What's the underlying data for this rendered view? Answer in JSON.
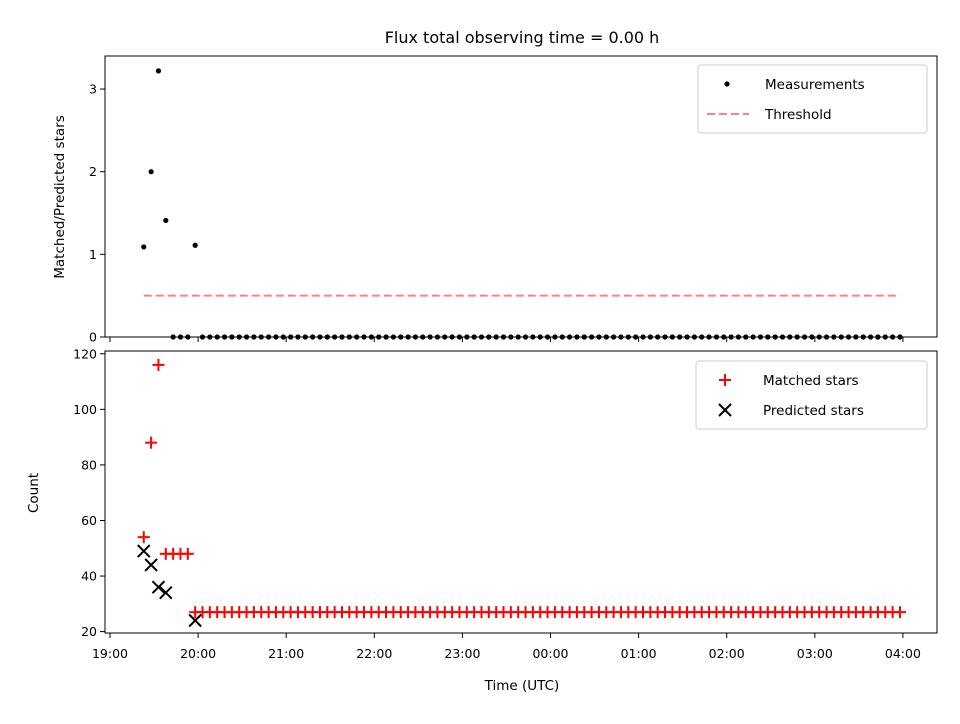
{
  "figure": {
    "title": "Flux total observing time = 0.00 h",
    "xlabel": "Time (UTC)"
  },
  "chart_data": [
    {
      "type": "scatter",
      "panel": "top",
      "ylabel": "Matched/Predicted stars",
      "xlim": [
        "19:00",
        "04:00"
      ],
      "ylim": [
        0,
        3.4
      ],
      "yticks": [
        0,
        1,
        2,
        3
      ],
      "series": [
        {
          "name": "Measurements",
          "marker": "dot",
          "color": "#000000",
          "points": [
            {
              "x": "19:23",
              "y": 1.09
            },
            {
              "x": "19:28",
              "y": 2.0
            },
            {
              "x": "19:33",
              "y": 3.22
            },
            {
              "x": "19:38",
              "y": 1.41
            },
            {
              "x": "19:43",
              "y": 0
            },
            {
              "x": "19:48",
              "y": 0
            },
            {
              "x": "19:53",
              "y": 0
            },
            {
              "x": "19:58",
              "y": 1.11
            },
            {
              "x": "20:03",
              "y": 0
            },
            {
              "x": "20:08",
              "y": 0
            },
            {
              "x": "20:13",
              "y": 0
            },
            {
              "x": "20:18",
              "y": 0
            },
            {
              "x": "20:23",
              "y": 0
            },
            {
              "x": "20:28",
              "y": 0
            },
            {
              "x": "20:33",
              "y": 0
            },
            {
              "x": "20:38",
              "y": 0
            },
            {
              "x": "20:43",
              "y": 0
            },
            {
              "x": "20:48",
              "y": 0
            },
            {
              "x": "20:53",
              "y": 0
            },
            {
              "x": "20:58",
              "y": 0
            },
            {
              "x": "21:03",
              "y": 0
            },
            {
              "x": "21:08",
              "y": 0
            },
            {
              "x": "21:13",
              "y": 0
            },
            {
              "x": "21:18",
              "y": 0
            },
            {
              "x": "21:23",
              "y": 0
            },
            {
              "x": "21:28",
              "y": 0
            },
            {
              "x": "21:33",
              "y": 0
            },
            {
              "x": "21:38",
              "y": 0
            },
            {
              "x": "21:43",
              "y": 0
            },
            {
              "x": "21:48",
              "y": 0
            },
            {
              "x": "21:53",
              "y": 0
            },
            {
              "x": "21:58",
              "y": 0
            },
            {
              "x": "22:03",
              "y": 0
            },
            {
              "x": "22:08",
              "y": 0
            },
            {
              "x": "22:13",
              "y": 0
            },
            {
              "x": "22:18",
              "y": 0
            },
            {
              "x": "22:23",
              "y": 0
            },
            {
              "x": "22:28",
              "y": 0
            },
            {
              "x": "22:33",
              "y": 0
            },
            {
              "x": "22:38",
              "y": 0
            },
            {
              "x": "22:43",
              "y": 0
            },
            {
              "x": "22:48",
              "y": 0
            },
            {
              "x": "22:53",
              "y": 0
            },
            {
              "x": "22:58",
              "y": 0
            },
            {
              "x": "23:03",
              "y": 0
            },
            {
              "x": "23:08",
              "y": 0
            },
            {
              "x": "23:13",
              "y": 0
            },
            {
              "x": "23:18",
              "y": 0
            },
            {
              "x": "23:23",
              "y": 0
            },
            {
              "x": "23:28",
              "y": 0
            },
            {
              "x": "23:33",
              "y": 0
            },
            {
              "x": "23:38",
              "y": 0
            },
            {
              "x": "23:43",
              "y": 0
            },
            {
              "x": "23:48",
              "y": 0
            },
            {
              "x": "23:53",
              "y": 0
            },
            {
              "x": "23:58",
              "y": 0
            },
            {
              "x": "00:03",
              "y": 0
            },
            {
              "x": "00:08",
              "y": 0
            },
            {
              "x": "00:13",
              "y": 0
            },
            {
              "x": "00:18",
              "y": 0
            },
            {
              "x": "00:23",
              "y": 0
            },
            {
              "x": "00:28",
              "y": 0
            },
            {
              "x": "00:33",
              "y": 0
            },
            {
              "x": "00:38",
              "y": 0
            },
            {
              "x": "00:43",
              "y": 0
            },
            {
              "x": "00:48",
              "y": 0
            },
            {
              "x": "00:53",
              "y": 0
            },
            {
              "x": "00:58",
              "y": 0
            },
            {
              "x": "01:03",
              "y": 0
            },
            {
              "x": "01:08",
              "y": 0
            },
            {
              "x": "01:13",
              "y": 0
            },
            {
              "x": "01:18",
              "y": 0
            },
            {
              "x": "01:23",
              "y": 0
            },
            {
              "x": "01:28",
              "y": 0
            },
            {
              "x": "01:33",
              "y": 0
            },
            {
              "x": "01:38",
              "y": 0
            },
            {
              "x": "01:43",
              "y": 0
            },
            {
              "x": "01:48",
              "y": 0
            },
            {
              "x": "01:53",
              "y": 0
            },
            {
              "x": "01:58",
              "y": 0
            },
            {
              "x": "02:03",
              "y": 0
            },
            {
              "x": "02:08",
              "y": 0
            },
            {
              "x": "02:13",
              "y": 0
            },
            {
              "x": "02:18",
              "y": 0
            },
            {
              "x": "02:23",
              "y": 0
            },
            {
              "x": "02:28",
              "y": 0
            },
            {
              "x": "02:33",
              "y": 0
            },
            {
              "x": "02:38",
              "y": 0
            },
            {
              "x": "02:43",
              "y": 0
            },
            {
              "x": "02:48",
              "y": 0
            },
            {
              "x": "02:53",
              "y": 0
            },
            {
              "x": "02:58",
              "y": 0
            },
            {
              "x": "03:03",
              "y": 0
            },
            {
              "x": "03:08",
              "y": 0
            },
            {
              "x": "03:13",
              "y": 0
            },
            {
              "x": "03:18",
              "y": 0
            },
            {
              "x": "03:23",
              "y": 0
            },
            {
              "x": "03:28",
              "y": 0
            },
            {
              "x": "03:33",
              "y": 0
            },
            {
              "x": "03:38",
              "y": 0
            },
            {
              "x": "03:43",
              "y": 0
            },
            {
              "x": "03:48",
              "y": 0
            },
            {
              "x": "03:53",
              "y": 0
            },
            {
              "x": "03:58",
              "y": 0
            }
          ]
        },
        {
          "name": "Threshold",
          "style": "dashed",
          "color": "#ff8080",
          "points": [
            {
              "x": "19:23",
              "y": 0.5
            },
            {
              "x": "03:58",
              "y": 0.5
            }
          ]
        }
      ],
      "legend_position": "top-right"
    },
    {
      "type": "scatter",
      "panel": "bottom",
      "ylabel": "Count",
      "xlim": [
        "19:00",
        "04:00"
      ],
      "ylim": [
        19.5,
        121
      ],
      "yticks": [
        20,
        40,
        60,
        80,
        100,
        120
      ],
      "xticks": [
        "19:00",
        "20:00",
        "21:00",
        "22:00",
        "23:00",
        "00:00",
        "01:00",
        "02:00",
        "03:00",
        "04:00"
      ],
      "series": [
        {
          "name": "Matched stars",
          "marker": "plus",
          "color": "#ff0000",
          "points": [
            {
              "x": "19:23",
              "y": 54
            },
            {
              "x": "19:28",
              "y": 88
            },
            {
              "x": "19:33",
              "y": 116
            },
            {
              "x": "19:38",
              "y": 48
            },
            {
              "x": "19:43",
              "y": 48
            },
            {
              "x": "19:48",
              "y": 48
            },
            {
              "x": "19:53",
              "y": 48
            },
            {
              "x": "19:58",
              "y": 27
            },
            {
              "x": "20:03",
              "y": 27
            },
            {
              "x": "20:08",
              "y": 27
            },
            {
              "x": "20:13",
              "y": 27
            },
            {
              "x": "20:18",
              "y": 27
            },
            {
              "x": "20:23",
              "y": 27
            },
            {
              "x": "20:28",
              "y": 27
            },
            {
              "x": "20:33",
              "y": 27
            },
            {
              "x": "20:38",
              "y": 27
            },
            {
              "x": "20:43",
              "y": 27
            },
            {
              "x": "20:48",
              "y": 27
            },
            {
              "x": "20:53",
              "y": 27
            },
            {
              "x": "20:58",
              "y": 27
            },
            {
              "x": "21:03",
              "y": 27
            },
            {
              "x": "21:08",
              "y": 27
            },
            {
              "x": "21:13",
              "y": 27
            },
            {
              "x": "21:18",
              "y": 27
            },
            {
              "x": "21:23",
              "y": 27
            },
            {
              "x": "21:28",
              "y": 27
            },
            {
              "x": "21:33",
              "y": 27
            },
            {
              "x": "21:38",
              "y": 27
            },
            {
              "x": "21:43",
              "y": 27
            },
            {
              "x": "21:48",
              "y": 27
            },
            {
              "x": "21:53",
              "y": 27
            },
            {
              "x": "21:58",
              "y": 27
            },
            {
              "x": "22:03",
              "y": 27
            },
            {
              "x": "22:08",
              "y": 27
            },
            {
              "x": "22:13",
              "y": 27
            },
            {
              "x": "22:18",
              "y": 27
            },
            {
              "x": "22:23",
              "y": 27
            },
            {
              "x": "22:28",
              "y": 27
            },
            {
              "x": "22:33",
              "y": 27
            },
            {
              "x": "22:38",
              "y": 27
            },
            {
              "x": "22:43",
              "y": 27
            },
            {
              "x": "22:48",
              "y": 27
            },
            {
              "x": "22:53",
              "y": 27
            },
            {
              "x": "22:58",
              "y": 27
            },
            {
              "x": "23:03",
              "y": 27
            },
            {
              "x": "23:08",
              "y": 27
            },
            {
              "x": "23:13",
              "y": 27
            },
            {
              "x": "23:18",
              "y": 27
            },
            {
              "x": "23:23",
              "y": 27
            },
            {
              "x": "23:28",
              "y": 27
            },
            {
              "x": "23:33",
              "y": 27
            },
            {
              "x": "23:38",
              "y": 27
            },
            {
              "x": "23:43",
              "y": 27
            },
            {
              "x": "23:48",
              "y": 27
            },
            {
              "x": "23:53",
              "y": 27
            },
            {
              "x": "23:58",
              "y": 27
            },
            {
              "x": "00:03",
              "y": 27
            },
            {
              "x": "00:08",
              "y": 27
            },
            {
              "x": "00:13",
              "y": 27
            },
            {
              "x": "00:18",
              "y": 27
            },
            {
              "x": "00:23",
              "y": 27
            },
            {
              "x": "00:28",
              "y": 27
            },
            {
              "x": "00:33",
              "y": 27
            },
            {
              "x": "00:38",
              "y": 27
            },
            {
              "x": "00:43",
              "y": 27
            },
            {
              "x": "00:48",
              "y": 27
            },
            {
              "x": "00:53",
              "y": 27
            },
            {
              "x": "00:58",
              "y": 27
            },
            {
              "x": "01:03",
              "y": 27
            },
            {
              "x": "01:08",
              "y": 27
            },
            {
              "x": "01:13",
              "y": 27
            },
            {
              "x": "01:18",
              "y": 27
            },
            {
              "x": "01:23",
              "y": 27
            },
            {
              "x": "01:28",
              "y": 27
            },
            {
              "x": "01:33",
              "y": 27
            },
            {
              "x": "01:38",
              "y": 27
            },
            {
              "x": "01:43",
              "y": 27
            },
            {
              "x": "01:48",
              "y": 27
            },
            {
              "x": "01:53",
              "y": 27
            },
            {
              "x": "01:58",
              "y": 27
            },
            {
              "x": "02:03",
              "y": 27
            },
            {
              "x": "02:08",
              "y": 27
            },
            {
              "x": "02:13",
              "y": 27
            },
            {
              "x": "02:18",
              "y": 27
            },
            {
              "x": "02:23",
              "y": 27
            },
            {
              "x": "02:28",
              "y": 27
            },
            {
              "x": "02:33",
              "y": 27
            },
            {
              "x": "02:38",
              "y": 27
            },
            {
              "x": "02:43",
              "y": 27
            },
            {
              "x": "02:48",
              "y": 27
            },
            {
              "x": "02:53",
              "y": 27
            },
            {
              "x": "02:58",
              "y": 27
            },
            {
              "x": "03:03",
              "y": 27
            },
            {
              "x": "03:08",
              "y": 27
            },
            {
              "x": "03:13",
              "y": 27
            },
            {
              "x": "03:18",
              "y": 27
            },
            {
              "x": "03:23",
              "y": 27
            },
            {
              "x": "03:28",
              "y": 27
            },
            {
              "x": "03:33",
              "y": 27
            },
            {
              "x": "03:38",
              "y": 27
            },
            {
              "x": "03:43",
              "y": 27
            },
            {
              "x": "03:48",
              "y": 27
            },
            {
              "x": "03:53",
              "y": 27
            },
            {
              "x": "03:58",
              "y": 27
            }
          ]
        },
        {
          "name": "Predicted stars",
          "marker": "x",
          "color": "#000000",
          "points": [
            {
              "x": "19:23",
              "y": 49
            },
            {
              "x": "19:28",
              "y": 44
            },
            {
              "x": "19:33",
              "y": 36
            },
            {
              "x": "19:38",
              "y": 34
            },
            {
              "x": "19:58",
              "y": 24
            }
          ]
        }
      ],
      "legend_position": "top-right"
    }
  ]
}
